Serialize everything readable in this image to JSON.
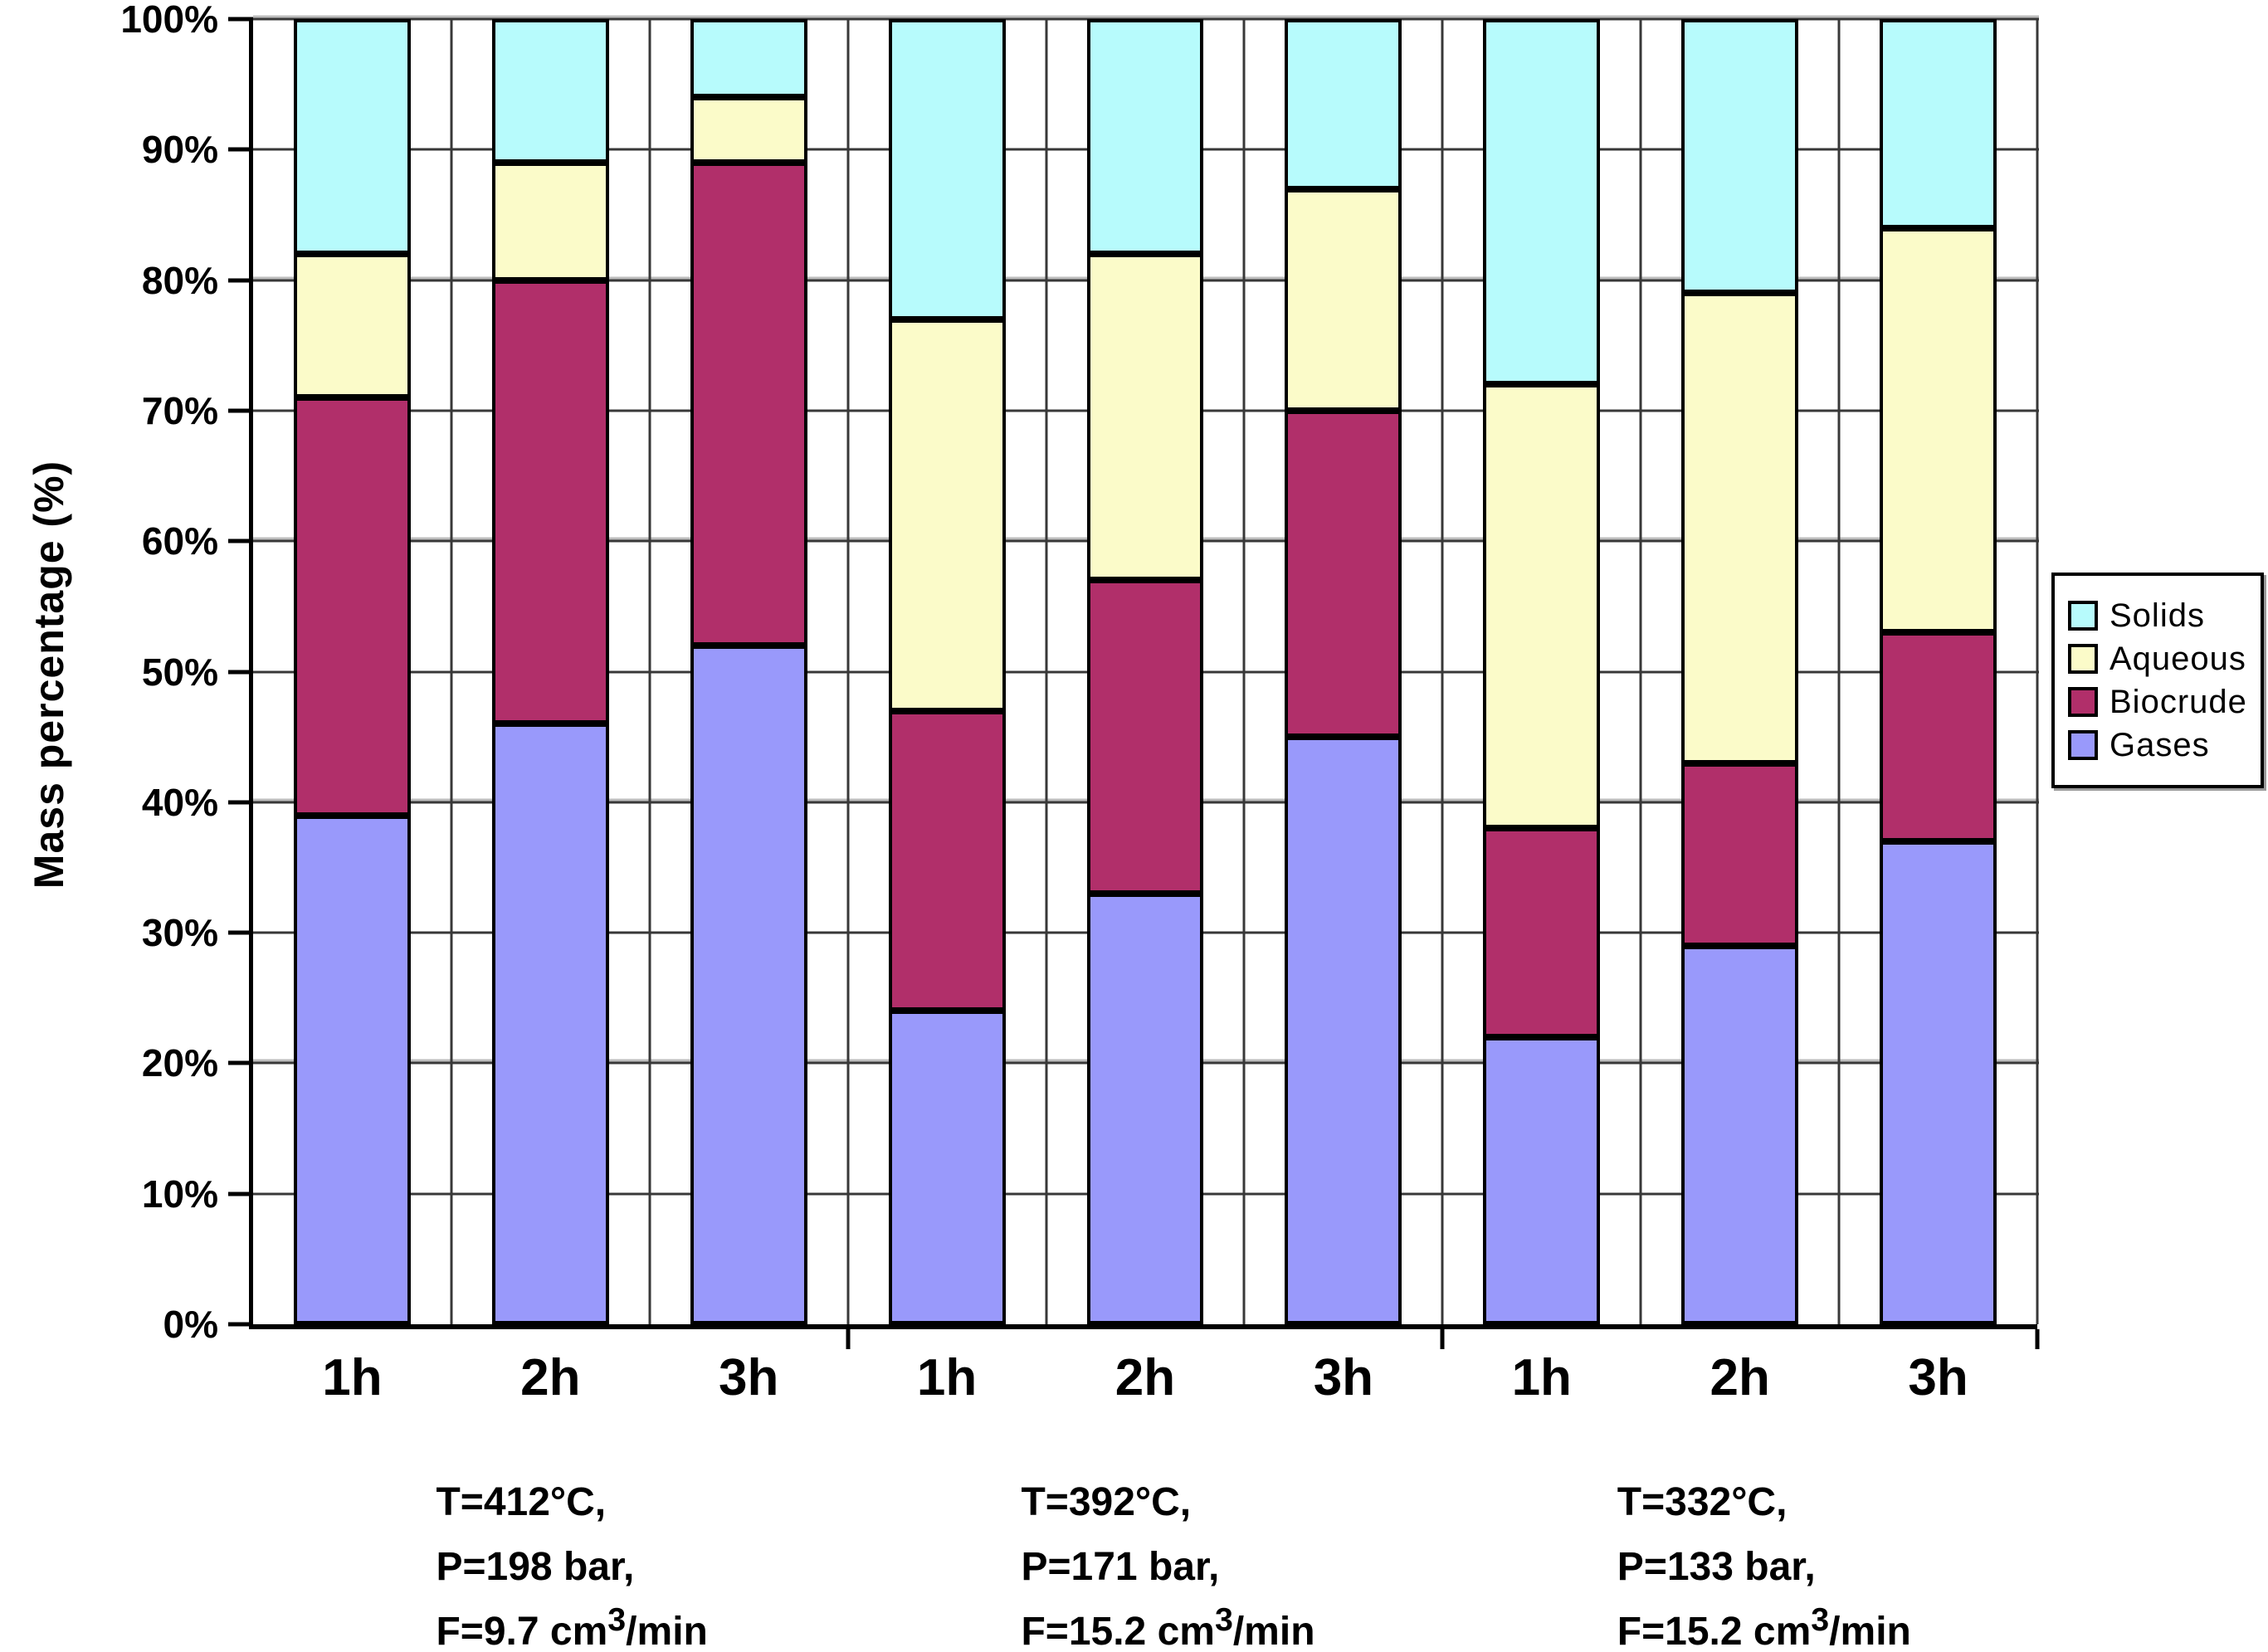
{
  "chart_data": {
    "type": "bar",
    "stacked": true,
    "title": "",
    "ylabel": "Mass percentage (%)",
    "xlabel": "",
    "ylim": [
      0,
      100
    ],
    "ytick_step": 10,
    "ytick_suffix": "%",
    "grid": true,
    "categories": [
      "1h",
      "2h",
      "3h",
      "1h",
      "2h",
      "3h",
      "1h",
      "2h",
      "3h"
    ],
    "series": [
      {
        "name": "Gases",
        "color": "#9999FB",
        "values": [
          39,
          46,
          52,
          24,
          33,
          45,
          22,
          29,
          37
        ]
      },
      {
        "name": "Biocrude",
        "color": "#B12F6A",
        "values": [
          32,
          34,
          37,
          23,
          24,
          25,
          16,
          14,
          16
        ]
      },
      {
        "name": "Aqueous",
        "color": "#FBFBC9",
        "values": [
          11,
          9,
          5,
          30,
          25,
          17,
          34,
          36,
          31
        ]
      },
      {
        "name": "Solids",
        "color": "#B7FBFC",
        "values": [
          18,
          11,
          6,
          23,
          18,
          13,
          28,
          21,
          16
        ]
      }
    ],
    "groups": [
      {
        "span": 3,
        "label_lines": [
          "T=412°C,",
          "P=198 bar,",
          "F=9.7 cm³/min"
        ]
      },
      {
        "span": 3,
        "label_lines": [
          "T=392°C,",
          "P=171 bar,",
          "F=15.2 cm³/min"
        ]
      },
      {
        "span": 3,
        "label_lines": [
          "T=332°C,",
          "P=133 bar,",
          "F=15.2 cm³/min"
        ]
      }
    ],
    "legend": {
      "position": "right",
      "entries": [
        "Solids",
        "Aqueous",
        "Biocrude",
        "Gases"
      ]
    },
    "colors": {
      "axis": "#000000",
      "gridline": "#383838",
      "background": "#ffffff"
    }
  }
}
